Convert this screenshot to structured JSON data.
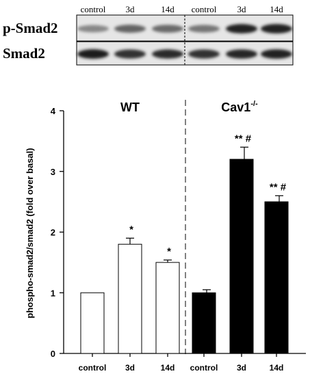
{
  "blot": {
    "lane_labels": [
      "control",
      "3d",
      "14d",
      "control",
      "3d",
      "14d"
    ],
    "rows": [
      {
        "label": "p-Smad2",
        "intensities": [
          0.42,
          0.58,
          0.55,
          0.5,
          0.88,
          0.9
        ]
      },
      {
        "label": "Smad2",
        "intensities": [
          0.92,
          0.82,
          0.84,
          0.82,
          0.86,
          0.9
        ]
      }
    ]
  },
  "chart_data": {
    "type": "bar",
    "ylabel": "phospho-smad2/smad2 (fold over basal)",
    "ylim": [
      0,
      4
    ],
    "yticks": [
      "0",
      "1",
      "2",
      "3",
      "4"
    ],
    "group_labels": [
      {
        "text": "WT",
        "sup": ""
      },
      {
        "text": "Cav1",
        "sup": "-/-"
      }
    ],
    "bars": [
      {
        "category": "control",
        "group": "WT",
        "value": 1.0,
        "error": 0.0,
        "annotation": "",
        "fill": "#ffffff"
      },
      {
        "category": "3d",
        "group": "WT",
        "value": 1.8,
        "error": 0.1,
        "annotation": "*",
        "fill": "#ffffff"
      },
      {
        "category": "14d",
        "group": "WT",
        "value": 1.5,
        "error": 0.04,
        "annotation": "*",
        "fill": "#ffffff"
      },
      {
        "category": "control",
        "group": "Cav1-/-",
        "value": 1.0,
        "error": 0.05,
        "annotation": "",
        "fill": "#000000"
      },
      {
        "category": "3d",
        "group": "Cav1-/-",
        "value": 3.2,
        "error": 0.2,
        "annotation": "** #",
        "fill": "#000000"
      },
      {
        "category": "14d",
        "group": "Cav1-/-",
        "value": 2.5,
        "error": 0.1,
        "annotation": "** #",
        "fill": "#000000"
      }
    ],
    "colors": {
      "wt_fill": "#ffffff",
      "ko_fill": "#000000",
      "axis": "#000000"
    }
  }
}
